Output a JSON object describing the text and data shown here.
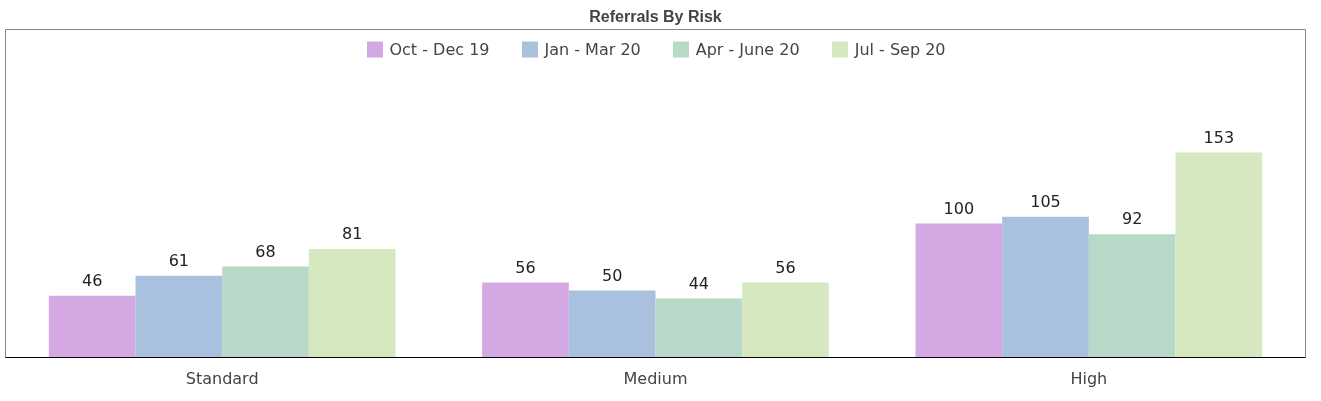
{
  "chart_data": {
    "type": "bar",
    "title": "Referrals By Risk",
    "categories": [
      "Standard",
      "Medium",
      "High"
    ],
    "series": [
      {
        "name": "Oct - Dec 19",
        "color": "#d4a9e3",
        "values": [
          46,
          56,
          100
        ]
      },
      {
        "name": "Jan - Mar 20",
        "color": "#a9c1de",
        "values": [
          61,
          50,
          105
        ]
      },
      {
        "name": "Apr - June 20",
        "color": "#b8d9c8",
        "values": [
          68,
          44,
          92
        ]
      },
      {
        "name": "Jul - Sep 20",
        "color": "#d6e8bf",
        "values": [
          81,
          56,
          153
        ]
      }
    ],
    "data_labels": true,
    "legend": "top",
    "grid": false
  }
}
